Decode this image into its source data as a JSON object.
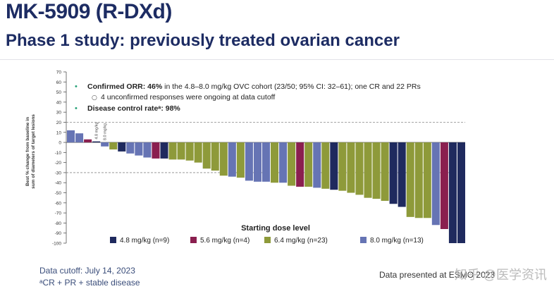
{
  "header": {
    "title": "MK-5909 (R-DXd)",
    "subtitle": "Phase 1 study: previously treated ovarian cancer"
  },
  "notes": {
    "bullet1_bold": "Confirmed ORR: 46%",
    "bullet1_rest": " in the 4.8–8.0 mg/kg OVC cohort (23/50; 95% CI: 32–61); one CR and 22 PRs",
    "sub_bullet": "4 unconfirmed responses were ongoing at data cutoff",
    "bullet2_bold": "Disease control rateᵃ: 98%"
  },
  "footer": {
    "cutoff": "Data cutoff: July 14, 2023",
    "footnote": "ᵃCR + PR + stable disease",
    "presented": "Data presented at ESMO 2023",
    "watermark": "知乎 @医学资讯"
  },
  "colors": {
    "4.8": "#1f2a5e",
    "5.6": "#8a1f4f",
    "6.4": "#8e9a3a",
    "8.0": "#6674b4",
    "title": "#1d2c63",
    "bullet": "#2aa37a"
  },
  "chart_data": {
    "type": "bar",
    "ylabel": "Best % change from baseline in sum of diameters of target lesions",
    "ylim": [
      -100,
      70
    ],
    "yticks": [
      70,
      60,
      50,
      40,
      30,
      20,
      10,
      0,
      -10,
      -20,
      -30,
      -40,
      -50,
      -60,
      -70,
      -80,
      -90,
      -100
    ],
    "reference_lines": [
      20,
      -30
    ],
    "bar_annotations": [
      {
        "bar_index": 3,
        "text": "4.8 mg/kg"
      },
      {
        "bar_index": 4,
        "text": "8.0 mg/kg"
      }
    ],
    "legend_title": "Starting dose level",
    "legend": [
      {
        "dose": "4.8",
        "label": "4.8 mg/kg  (n=9)"
      },
      {
        "dose": "5.6",
        "label": "5.6 mg/kg  (n=4)"
      },
      {
        "dose": "6.4",
        "label": "6.4 mg/kg  (n=23)"
      },
      {
        "dose": "8.0",
        "label": "8.0 mg/kg  (n=13)"
      }
    ],
    "bars": [
      {
        "dose": "8.0",
        "value": 12
      },
      {
        "dose": "8.0",
        "value": 9
      },
      {
        "dose": "5.6",
        "value": 3
      },
      {
        "dose": "4.8",
        "value": 1
      },
      {
        "dose": "8.0",
        "value": -4
      },
      {
        "dose": "6.4",
        "value": -7
      },
      {
        "dose": "4.8",
        "value": -9
      },
      {
        "dose": "8.0",
        "value": -11
      },
      {
        "dose": "8.0",
        "value": -13
      },
      {
        "dose": "8.0",
        "value": -15
      },
      {
        "dose": "5.6",
        "value": -16
      },
      {
        "dose": "4.8",
        "value": -16
      },
      {
        "dose": "6.4",
        "value": -17
      },
      {
        "dose": "6.4",
        "value": -17
      },
      {
        "dose": "6.4",
        "value": -18
      },
      {
        "dose": "6.4",
        "value": -20
      },
      {
        "dose": "6.4",
        "value": -26
      },
      {
        "dose": "6.4",
        "value": -28
      },
      {
        "dose": "6.4",
        "value": -33
      },
      {
        "dose": "8.0",
        "value": -34
      },
      {
        "dose": "6.4",
        "value": -35
      },
      {
        "dose": "8.0",
        "value": -38
      },
      {
        "dose": "8.0",
        "value": -39
      },
      {
        "dose": "8.0",
        "value": -39
      },
      {
        "dose": "6.4",
        "value": -40
      },
      {
        "dose": "8.0",
        "value": -40
      },
      {
        "dose": "6.4",
        "value": -43
      },
      {
        "dose": "5.6",
        "value": -44
      },
      {
        "dose": "6.4",
        "value": -44
      },
      {
        "dose": "8.0",
        "value": -45
      },
      {
        "dose": "6.4",
        "value": -46
      },
      {
        "dose": "4.8",
        "value": -47
      },
      {
        "dose": "6.4",
        "value": -48
      },
      {
        "dose": "6.4",
        "value": -50
      },
      {
        "dose": "6.4",
        "value": -52
      },
      {
        "dose": "6.4",
        "value": -55
      },
      {
        "dose": "6.4",
        "value": -56
      },
      {
        "dose": "6.4",
        "value": -58
      },
      {
        "dose": "4.8",
        "value": -61
      },
      {
        "dose": "4.8",
        "value": -64
      },
      {
        "dose": "6.4",
        "value": -74
      },
      {
        "dose": "6.4",
        "value": -75
      },
      {
        "dose": "6.4",
        "value": -75
      },
      {
        "dose": "8.0",
        "value": -82
      },
      {
        "dose": "5.6",
        "value": -86
      },
      {
        "dose": "4.8",
        "value": -100
      },
      {
        "dose": "4.8",
        "value": -100
      }
    ]
  }
}
